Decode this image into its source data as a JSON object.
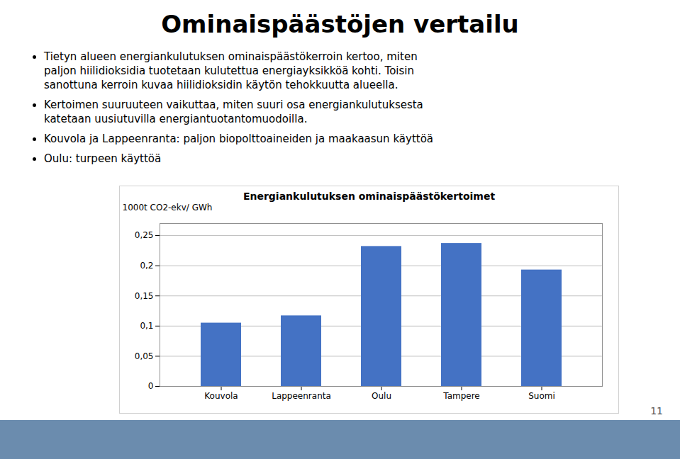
{
  "title": "Ominaispäästöjen vertailu",
  "annotations": [
    "Tietyn alueen energiankulutuksen ominaispäästökerroin kertoo, miten\npaljon hiilidioksidia tuotetaan kulutettua energiayksikköä kohti. Toisin\nsanottuna kerroin kuvaa hiilidioksidin käytön tehokkuutta alueella.",
    "Kertoimen suuruuteen vaikuttaa, miten suuri osa energiankulutuksesta\nkatetaan uusiutuvilla energiantuotantomuodoilla.",
    "Kouvola ja Lappeenranta: paljon biopolttoaineiden ja maakaasun käyttöä",
    "Oulu: turpeen käyttöä",
    "11"
  ],
  "chart_data": {
    "type": "bar",
    "title": "Energiankulutuksen ominaispäästökertoimet",
    "categories": [
      "Kouvola",
      "Lappeenranta",
      "Oulu",
      "Tampere",
      "Suomi"
    ],
    "values": [
      0.105,
      0.117,
      0.232,
      0.237,
      0.193
    ],
    "color": "#4472C4",
    "ylabel": "1000t CO2-ekv/ GWh",
    "ylim": [
      0,
      0.27
    ],
    "yticks": [
      0,
      {
        "value": 0.05,
        "label": "0,05"
      },
      {
        "value": 0.1,
        "label": "0,1"
      },
      {
        "value": 0.15,
        "label": "0,15"
      },
      {
        "value": 0.2,
        "label": "0,2"
      },
      {
        "value": 0.25,
        "label": "0,25"
      }
    ],
    "grid": true
  }
}
